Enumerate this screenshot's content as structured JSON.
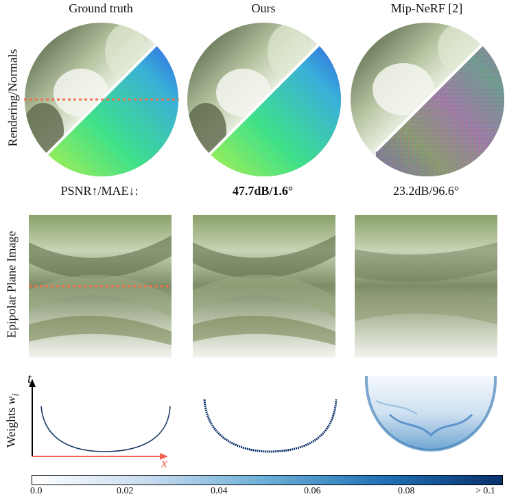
{
  "columns": [
    "Ground truth",
    "Ours",
    "Mip-NeRF [2]"
  ],
  "row_labels": [
    "Rendering/Normals",
    "Epipolar Plane Image",
    "Weights"
  ],
  "row_label_weights_symbol": "w",
  "row_label_weights_sub": "i",
  "metrics": {
    "label": "PSNR↑/MAE↓:",
    "ours": "47.7dB/1.6°",
    "mipnerf": "23.2dB/96.6°"
  },
  "axes": {
    "t_label": "t",
    "x_label": "x"
  },
  "colorbar": {
    "ticks": [
      "0.0",
      "0.02",
      "0.04",
      "0.06",
      "0.08",
      "> 0.1"
    ],
    "colors": [
      "#ffffff",
      "#08306b"
    ]
  },
  "colors": {
    "dashed_line": "#f07050",
    "x_axis": "#f06050",
    "curve": "#1c3b66"
  }
}
